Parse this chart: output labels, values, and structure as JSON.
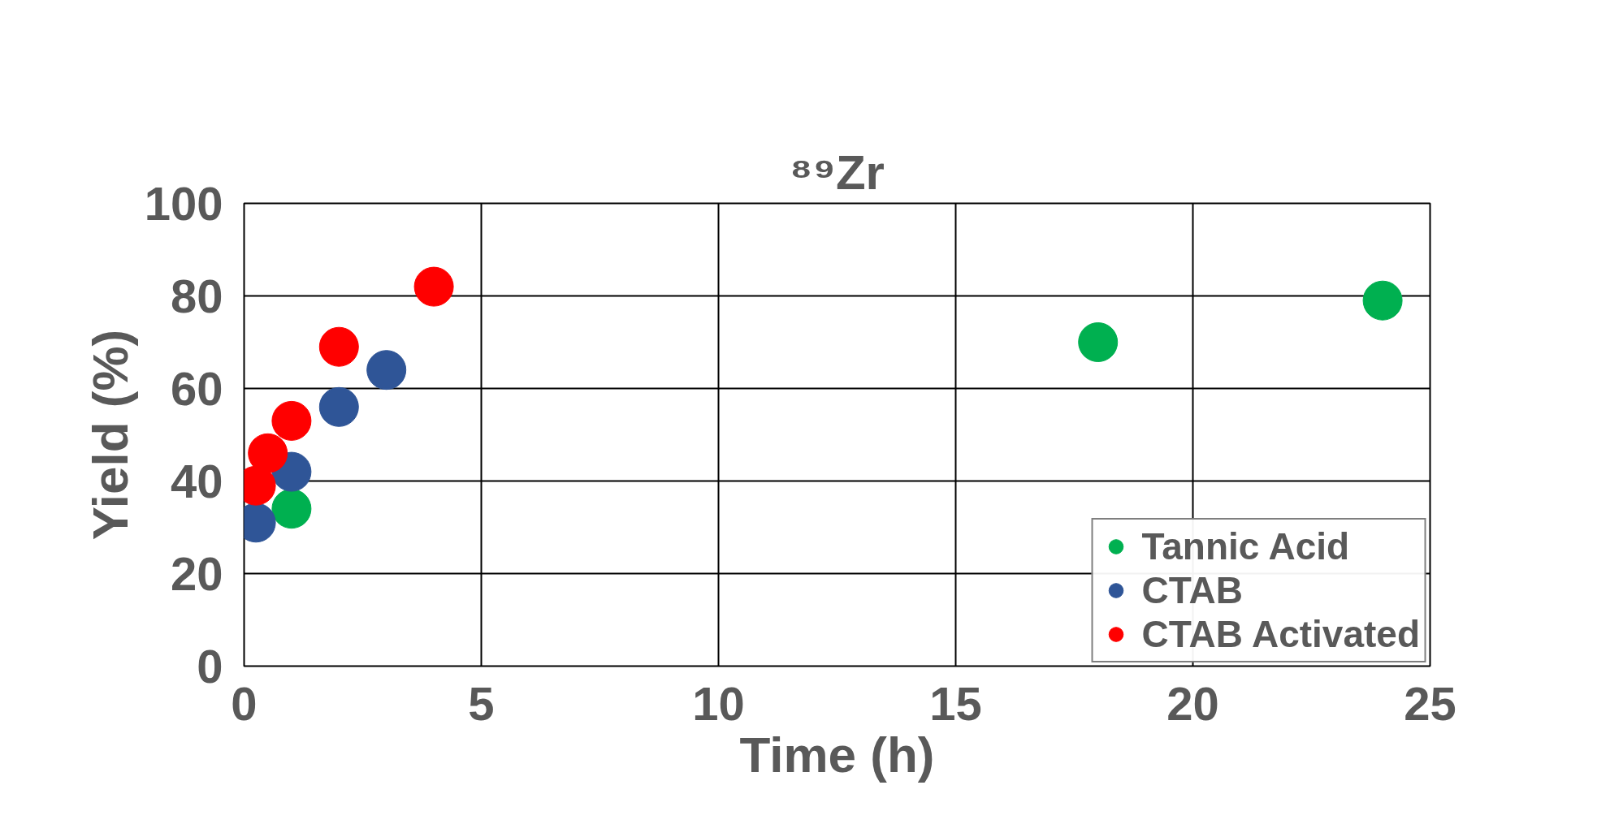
{
  "chart_data": {
    "type": "scatter",
    "title": "⁸⁹Zr",
    "xlabel": "Time (h)",
    "ylabel": "Yield (%)",
    "xlim": [
      0,
      25
    ],
    "xticks": [
      0,
      5,
      10,
      15,
      20,
      25
    ],
    "ylim": [
      0,
      100
    ],
    "yticks": [
      0,
      20,
      40,
      60,
      80,
      100
    ],
    "grid": true,
    "legend": "bottom right",
    "marker": "circle",
    "series": [
      {
        "name": "Tannic Acid",
        "color": "#00b050",
        "x": [
          1,
          18,
          24
        ],
        "values": [
          34,
          70,
          79
        ]
      },
      {
        "name": "CTAB",
        "color": "#2f5597",
        "x": [
          0.25,
          1,
          2,
          3
        ],
        "values": [
          31,
          42,
          56,
          64
        ]
      },
      {
        "name": "CTAB Activated",
        "color": "#ff0000",
        "x": [
          0.25,
          0.5,
          1,
          2,
          4
        ],
        "values": [
          39,
          46,
          53,
          69,
          82
        ]
      }
    ]
  }
}
